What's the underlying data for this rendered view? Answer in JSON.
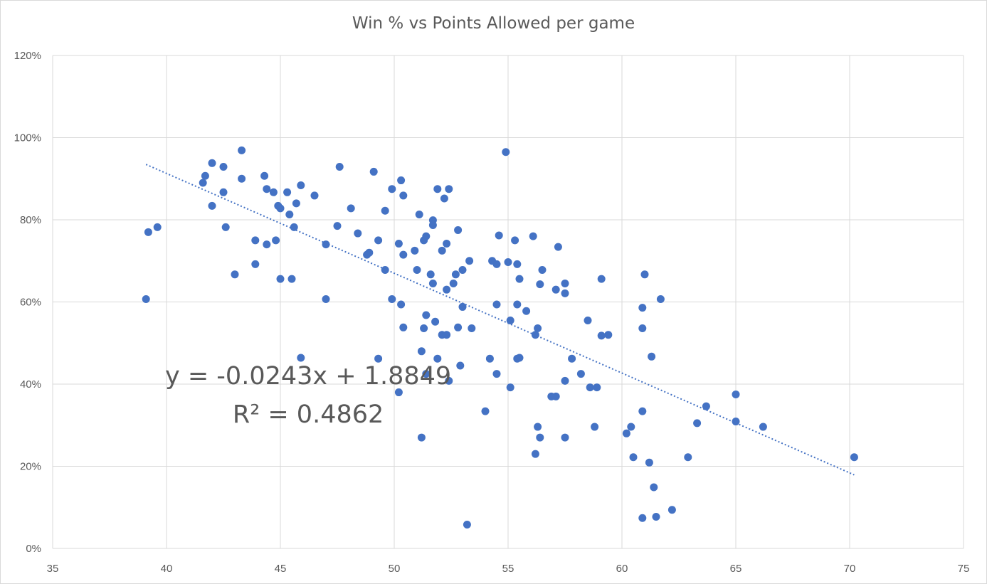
{
  "chart_data": {
    "type": "scatter",
    "title": "Win % vs Points Allowed per game",
    "xlabel": "",
    "ylabel": "",
    "xlim": [
      35,
      75
    ],
    "ylim": [
      0,
      1.2
    ],
    "x_ticks": [
      "35",
      "40",
      "45",
      "50",
      "55",
      "60",
      "65",
      "70",
      "75"
    ],
    "y_ticks": [
      "0%",
      "20%",
      "40%",
      "60%",
      "80%",
      "100%",
      "120%"
    ],
    "grid": true,
    "legend": "none",
    "marker_color": "#4472C4",
    "trendline": {
      "type": "linear",
      "slope": -0.0243,
      "intercept": 1.8849,
      "x_range": [
        39.1,
        70.2
      ],
      "style": "dotted",
      "color": "#4472C4",
      "equation": "y = -0.0243x + 1.8849",
      "r_squared": "R² = 0.4862"
    },
    "points": [
      [
        39.1,
        0.607
      ],
      [
        39.2,
        0.77
      ],
      [
        39.6,
        0.782
      ],
      [
        41.6,
        0.89
      ],
      [
        41.7,
        0.907
      ],
      [
        42.0,
        0.938
      ],
      [
        42.0,
        0.834
      ],
      [
        42.5,
        0.929
      ],
      [
        42.5,
        0.867
      ],
      [
        42.6,
        0.782
      ],
      [
        43.0,
        0.667
      ],
      [
        43.3,
        0.969
      ],
      [
        43.3,
        0.9
      ],
      [
        43.9,
        0.75
      ],
      [
        43.9,
        0.692
      ],
      [
        44.3,
        0.907
      ],
      [
        44.4,
        0.875
      ],
      [
        44.4,
        0.74
      ],
      [
        44.7,
        0.867
      ],
      [
        44.8,
        0.75
      ],
      [
        44.9,
        0.834
      ],
      [
        45.0,
        0.828
      ],
      [
        45.0,
        0.656
      ],
      [
        45.3,
        0.867
      ],
      [
        45.4,
        0.813
      ],
      [
        45.5,
        0.656
      ],
      [
        45.6,
        0.782
      ],
      [
        45.7,
        0.84
      ],
      [
        45.9,
        0.884
      ],
      [
        45.9,
        0.464
      ],
      [
        46.5,
        0.859
      ],
      [
        47.0,
        0.74
      ],
      [
        47.0,
        0.607
      ],
      [
        47.5,
        0.785
      ],
      [
        47.6,
        0.929
      ],
      [
        48.1,
        0.828
      ],
      [
        48.4,
        0.767
      ],
      [
        48.8,
        0.715
      ],
      [
        48.9,
        0.72
      ],
      [
        49.1,
        0.917
      ],
      [
        49.3,
        0.75
      ],
      [
        49.3,
        0.462
      ],
      [
        49.6,
        0.822
      ],
      [
        49.6,
        0.678
      ],
      [
        49.9,
        0.875
      ],
      [
        49.9,
        0.607
      ],
      [
        50.2,
        0.742
      ],
      [
        50.2,
        0.38
      ],
      [
        50.3,
        0.896
      ],
      [
        50.3,
        0.594
      ],
      [
        50.4,
        0.859
      ],
      [
        50.4,
        0.715
      ],
      [
        50.4,
        0.538
      ],
      [
        50.9,
        0.725
      ],
      [
        51.0,
        0.678
      ],
      [
        51.1,
        0.813
      ],
      [
        51.2,
        0.48
      ],
      [
        51.2,
        0.27
      ],
      [
        51.3,
        0.75
      ],
      [
        51.3,
        0.536
      ],
      [
        51.4,
        0.76
      ],
      [
        51.4,
        0.568
      ],
      [
        51.4,
        0.425
      ],
      [
        51.6,
        0.667
      ],
      [
        51.7,
        0.799
      ],
      [
        51.7,
        0.787
      ],
      [
        51.7,
        0.645
      ],
      [
        51.8,
        0.552
      ],
      [
        51.9,
        0.875
      ],
      [
        51.9,
        0.462
      ],
      [
        52.1,
        0.725
      ],
      [
        52.1,
        0.52
      ],
      [
        52.2,
        0.852
      ],
      [
        52.3,
        0.742
      ],
      [
        52.3,
        0.63
      ],
      [
        52.3,
        0.52
      ],
      [
        52.4,
        0.875
      ],
      [
        52.4,
        0.408
      ],
      [
        52.6,
        0.645
      ],
      [
        52.7,
        0.667
      ],
      [
        52.8,
        0.775
      ],
      [
        52.8,
        0.538
      ],
      [
        52.9,
        0.445
      ],
      [
        53.0,
        0.678
      ],
      [
        53.0,
        0.588
      ],
      [
        53.2,
        0.058
      ],
      [
        53.3,
        0.7
      ],
      [
        53.4,
        0.536
      ],
      [
        54.0,
        0.334
      ],
      [
        54.2,
        0.462
      ],
      [
        54.3,
        0.7
      ],
      [
        54.5,
        0.692
      ],
      [
        54.5,
        0.594
      ],
      [
        54.5,
        0.425
      ],
      [
        54.6,
        0.762
      ],
      [
        54.9,
        0.965
      ],
      [
        55.0,
        0.697
      ],
      [
        55.1,
        0.555
      ],
      [
        55.1,
        0.392
      ],
      [
        55.3,
        0.75
      ],
      [
        55.4,
        0.692
      ],
      [
        55.4,
        0.594
      ],
      [
        55.4,
        0.462
      ],
      [
        55.5,
        0.656
      ],
      [
        55.5,
        0.464
      ],
      [
        55.8,
        0.578
      ],
      [
        56.1,
        0.76
      ],
      [
        56.2,
        0.52
      ],
      [
        56.2,
        0.23
      ],
      [
        56.3,
        0.536
      ],
      [
        56.3,
        0.296
      ],
      [
        56.4,
        0.643
      ],
      [
        56.4,
        0.27
      ],
      [
        56.5,
        0.678
      ],
      [
        56.9,
        0.37
      ],
      [
        57.1,
        0.63
      ],
      [
        57.1,
        0.37
      ],
      [
        57.2,
        0.734
      ],
      [
        57.5,
        0.645
      ],
      [
        57.5,
        0.621
      ],
      [
        57.5,
        0.408
      ],
      [
        57.5,
        0.27
      ],
      [
        57.8,
        0.462
      ],
      [
        58.2,
        0.425
      ],
      [
        58.5,
        0.555
      ],
      [
        58.6,
        0.392
      ],
      [
        58.8,
        0.296
      ],
      [
        58.9,
        0.392
      ],
      [
        59.1,
        0.656
      ],
      [
        59.1,
        0.518
      ],
      [
        59.4,
        0.52
      ],
      [
        60.2,
        0.28
      ],
      [
        60.4,
        0.296
      ],
      [
        60.5,
        0.222
      ],
      [
        60.9,
        0.586
      ],
      [
        60.9,
        0.536
      ],
      [
        60.9,
        0.334
      ],
      [
        60.9,
        0.074
      ],
      [
        61.0,
        0.667
      ],
      [
        61.2,
        0.209
      ],
      [
        61.3,
        0.467
      ],
      [
        61.4,
        0.149
      ],
      [
        61.5,
        0.077
      ],
      [
        61.7,
        0.607
      ],
      [
        62.2,
        0.094
      ],
      [
        62.9,
        0.222
      ],
      [
        63.3,
        0.305
      ],
      [
        63.7,
        0.346
      ],
      [
        65.0,
        0.375
      ],
      [
        65.0,
        0.309
      ],
      [
        66.2,
        0.296
      ],
      [
        70.2,
        0.222
      ]
    ]
  }
}
